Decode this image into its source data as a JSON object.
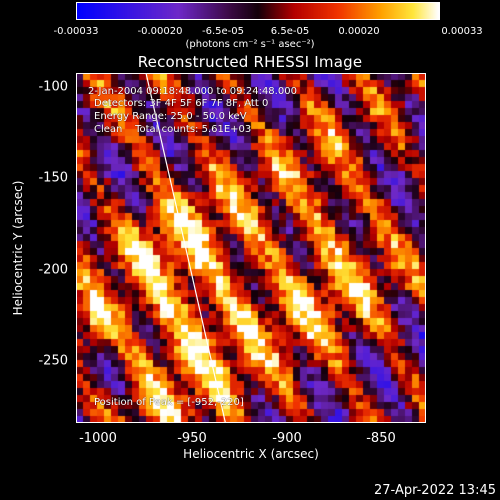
{
  "chart_data": {
    "type": "heatmap",
    "title": "Reconstructed RHESSI Image",
    "xlabel": "Heliocentric X (arcsec)",
    "ylabel": "Heliocentric Y (arcsec)",
    "xlim": [
      -1010,
      -825
    ],
    "ylim": [
      -285,
      -92
    ],
    "xticks": [
      -1000,
      -950,
      -900,
      -850
    ],
    "yticks": [
      -100,
      -150,
      -200,
      -250
    ],
    "colorbar": {
      "range": [
        -0.00033,
        0.00033
      ],
      "ticks": [
        "-0.00033",
        "-0.00020",
        "-6.5e-05",
        "6.5e-05",
        "0.00020",
        "0.00033"
      ],
      "units": "(photons cm⁻² s⁻¹ asec⁻²)",
      "colormap": "blue-purple-red-yellow-white"
    },
    "annotations": {
      "time": "2-Jan-2004 09:18:48.000 to 09:24:48.000",
      "detectors": "Detectors: 3F 4F 5F 6F 7F 8F, Att 0",
      "energy": "Energy Range: 25.0 - 50.0 keV",
      "clean": "Clean    Total counts: 5.61E+03",
      "peak": "Position of Peak = [-952,-220]"
    },
    "limb_line": [
      [
        -973,
        -92
      ],
      [
        -931,
        -285
      ]
    ],
    "peak_position": [
      -952,
      -220
    ],
    "grid": false
  },
  "footer": {
    "timestamp": "27-Apr-2022 13:45"
  }
}
